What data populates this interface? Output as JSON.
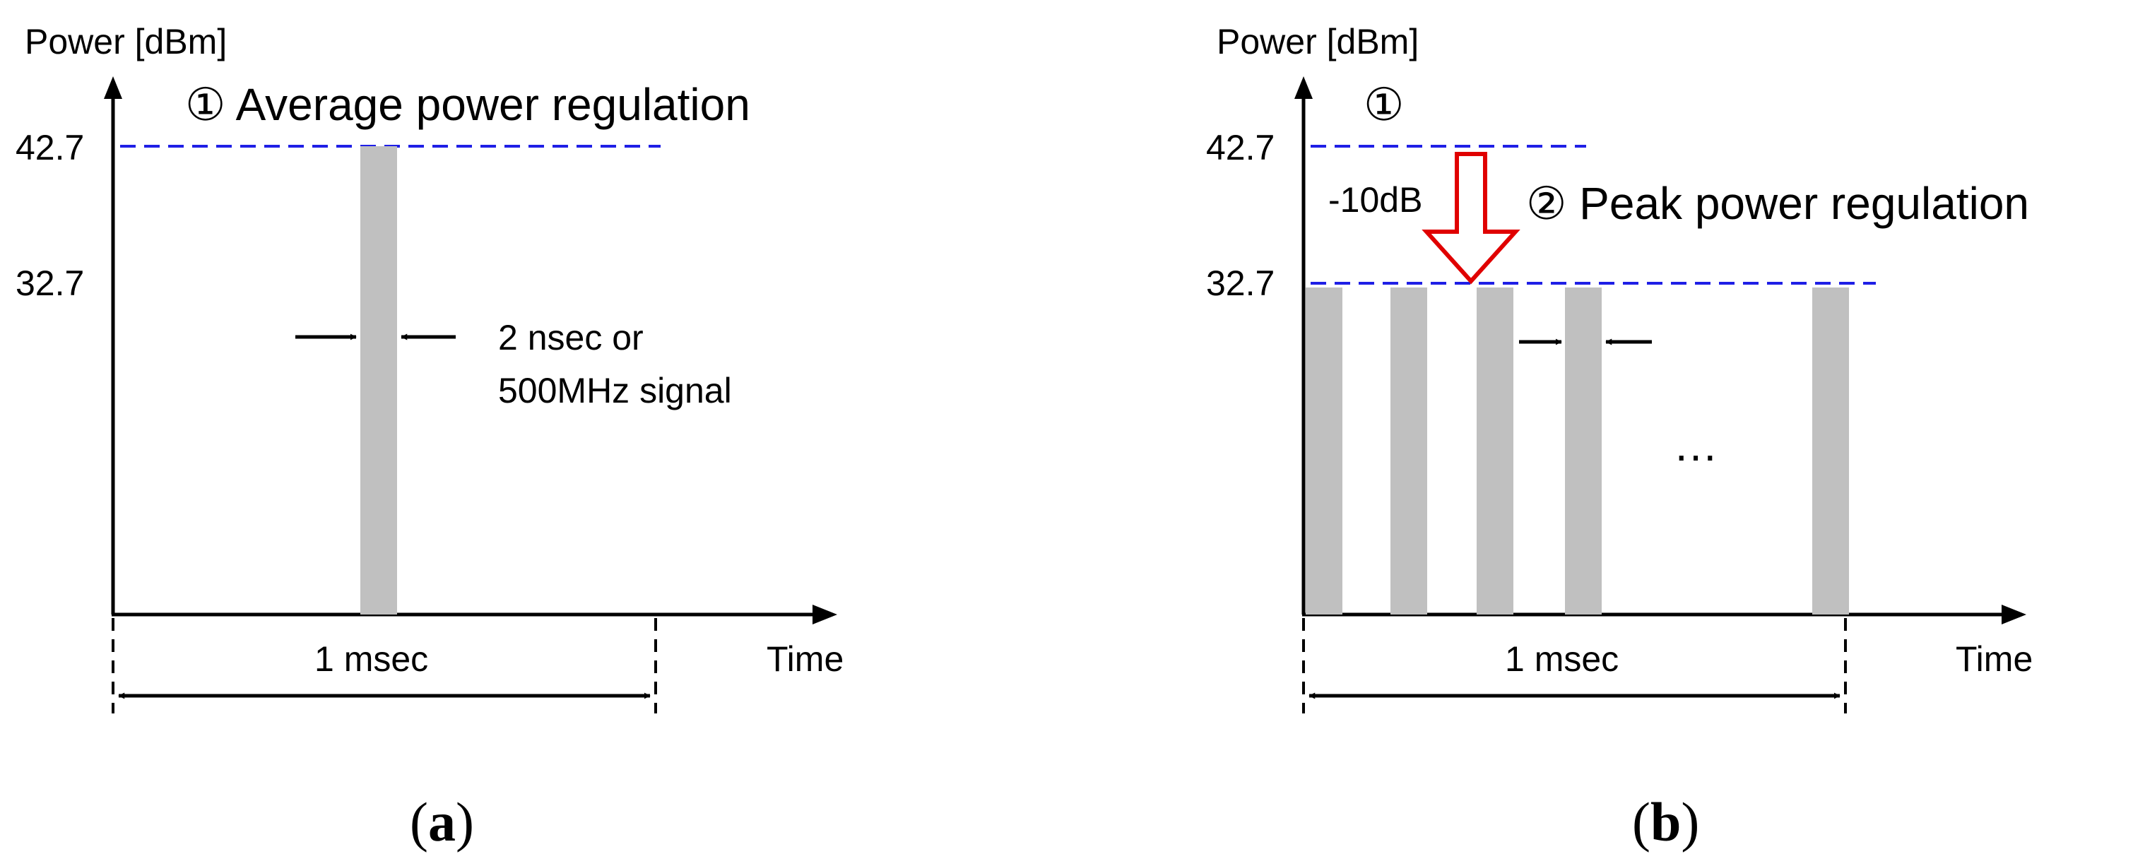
{
  "colors": {
    "dashed_line": "#1f1fe6",
    "pulse": "#c0c0c0",
    "arrow": "#e00000",
    "axis": "#000000"
  },
  "panel_a": {
    "y_axis_label": "Power [dBm]",
    "x_axis_label": "Time",
    "tick_high": "42.7",
    "tick_low": "32.7",
    "regulation_label": "① Average power regulation",
    "pulse_label_line1": "2 nsec or",
    "pulse_label_line2": "500MHz signal",
    "duration_label": "1 msec",
    "caption_open": "(",
    "caption_letter": "a",
    "caption_close": ")"
  },
  "panel_b": {
    "y_axis_label": "Power [dBm]",
    "x_axis_label": "Time",
    "tick_high": "42.7",
    "tick_low": "32.7",
    "marker_1": "①",
    "drop_label": "-10dB",
    "regulation_label": "② Peak power regulation",
    "ellipsis": "…",
    "duration_label": "1 msec",
    "caption_open": "(",
    "caption_letter": "b",
    "caption_close": ")"
  }
}
